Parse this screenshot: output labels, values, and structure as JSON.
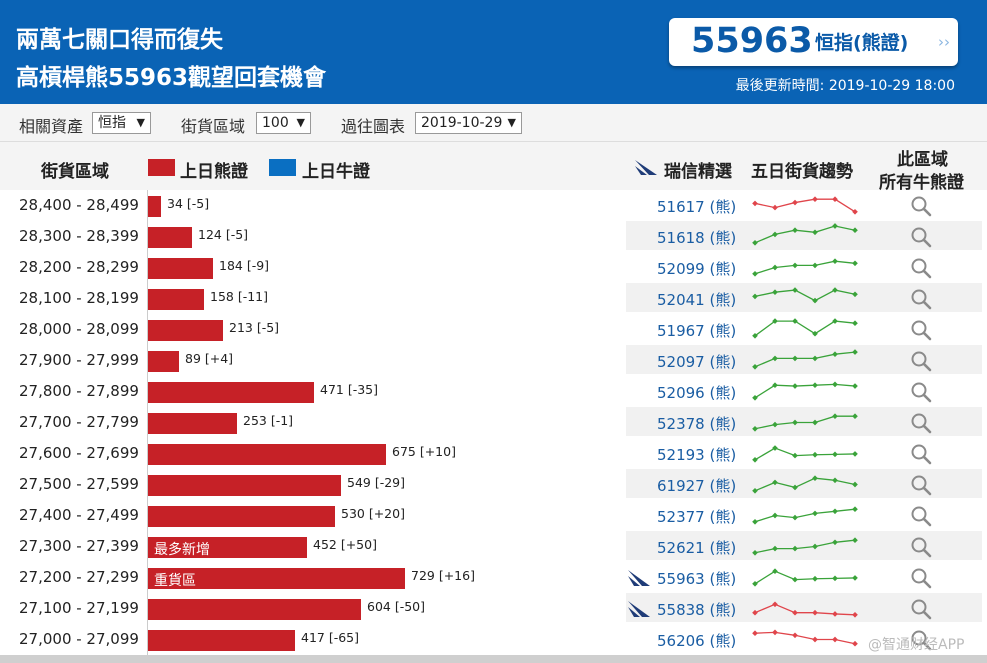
{
  "header": {
    "title_line1": "兩萬七關口得而復失",
    "title_line2": "高槓桿熊55963觀望回套機會",
    "price": "55963",
    "price_label": "恒指(熊證)",
    "price_arrow": "››",
    "updated_label": "最後更新時間: 2019-10-29 18:00"
  },
  "controls": {
    "asset_label": "相關資產",
    "asset_value": "恒指",
    "zone_label": "街貨區域",
    "zone_value": "100",
    "chart_label": "過往圖表",
    "chart_value": "2019-10-29"
  },
  "table": {
    "col_range": "街貨區域",
    "legend_bear": "上日熊證",
    "legend_bull": "上日牛證",
    "col_pick": "瑞信精選",
    "col_trend": "五日街貨趨勢",
    "col_all_line1": "此區域",
    "col_all_line2": "所有牛熊證",
    "bear_color": "#c62127",
    "bull_color": "#0a6fc2",
    "rows": [
      {
        "range": "28,400 - 28,499",
        "value": 34,
        "label": "34 [-5]",
        "warrant": "51617 (熊)",
        "trend": [
          3,
          2,
          3.2,
          4,
          4,
          1
        ],
        "flag": false
      },
      {
        "range": "28,300 - 28,399",
        "value": 124,
        "label": "124 [-5]",
        "warrant": "51618 (熊)",
        "trend": [
          1,
          3,
          4,
          3.5,
          5,
          4
        ],
        "flag": false
      },
      {
        "range": "28,200 - 28,299",
        "value": 184,
        "label": "184 [-9]",
        "warrant": "52099 (熊)",
        "trend": [
          1,
          2.5,
          3,
          3,
          4,
          3.5
        ],
        "flag": false
      },
      {
        "range": "28,100 - 28,199",
        "value": 158,
        "label": "158 [-11]",
        "warrant": "52041 (熊)",
        "trend": [
          3,
          4,
          4.5,
          2,
          4.5,
          3.5
        ],
        "flag": false
      },
      {
        "range": "28,000 - 28,099",
        "value": 213,
        "label": "213 [-5]",
        "warrant": "51967 (熊)",
        "trend": [
          1,
          4.5,
          4.5,
          1.5,
          4.5,
          4
        ],
        "flag": false
      },
      {
        "range": "27,900 - 27,999",
        "value": 89,
        "label": "89 [+4]",
        "warrant": "52097 (熊)",
        "trend": [
          1,
          3,
          3,
          3,
          4,
          4.5
        ],
        "flag": false
      },
      {
        "range": "27,800 - 27,899",
        "value": 471,
        "label": "471 [-35]",
        "warrant": "52096 (熊)",
        "trend": [
          1,
          4,
          3.8,
          4,
          4.2,
          3.8
        ],
        "flag": false
      },
      {
        "range": "27,700 - 27,799",
        "value": 253,
        "label": "253 [-1]",
        "warrant": "52378 (熊)",
        "trend": [
          1,
          2,
          2.5,
          2.5,
          4,
          4
        ],
        "flag": false
      },
      {
        "range": "27,600 - 27,699",
        "value": 675,
        "label": "675 [+10]",
        "warrant": "52193 (熊)",
        "trend": [
          1,
          3.8,
          2,
          2.2,
          2.3,
          2.4
        ],
        "flag": false
      },
      {
        "range": "27,500 - 27,599",
        "value": 549,
        "label": "549 [-29]",
        "warrant": "61927 (熊)",
        "trend": [
          1,
          3,
          1.8,
          4,
          3.5,
          2.5
        ],
        "flag": false
      },
      {
        "range": "27,400 - 27,499",
        "value": 530,
        "label": "530 [+20]",
        "warrant": "52377 (熊)",
        "trend": [
          1,
          2.5,
          2,
          3,
          3.5,
          4
        ],
        "flag": false
      },
      {
        "range": "27,300 - 27,399",
        "value": 452,
        "label": "452 [+50]",
        "warrant": "52621 (熊)",
        "trend": [
          1,
          2,
          2,
          2.5,
          3.5,
          4
        ],
        "flag": false,
        "tag": "最多新增"
      },
      {
        "range": "27,200 - 27,299",
        "value": 729,
        "label": "729 [+16]",
        "warrant": "55963 (熊)",
        "trend": [
          1,
          4,
          2,
          2.2,
          2.3,
          2.4
        ],
        "flag": true,
        "tag": "重貨區"
      },
      {
        "range": "27,100 - 27,199",
        "value": 604,
        "label": "604 [-50]",
        "warrant": "55838 (熊)",
        "trend": [
          1.5,
          3.5,
          1.5,
          1.5,
          1.2,
          1
        ],
        "flag": true
      },
      {
        "range": "27,000 - 27,099",
        "value": 417,
        "label": "417 [-65]",
        "warrant": "56206 (熊)",
        "trend": [
          4,
          4.2,
          3.5,
          2.5,
          2.5,
          1.5
        ],
        "flag": false
      }
    ]
  },
  "watermark": "@智通财经APP"
}
